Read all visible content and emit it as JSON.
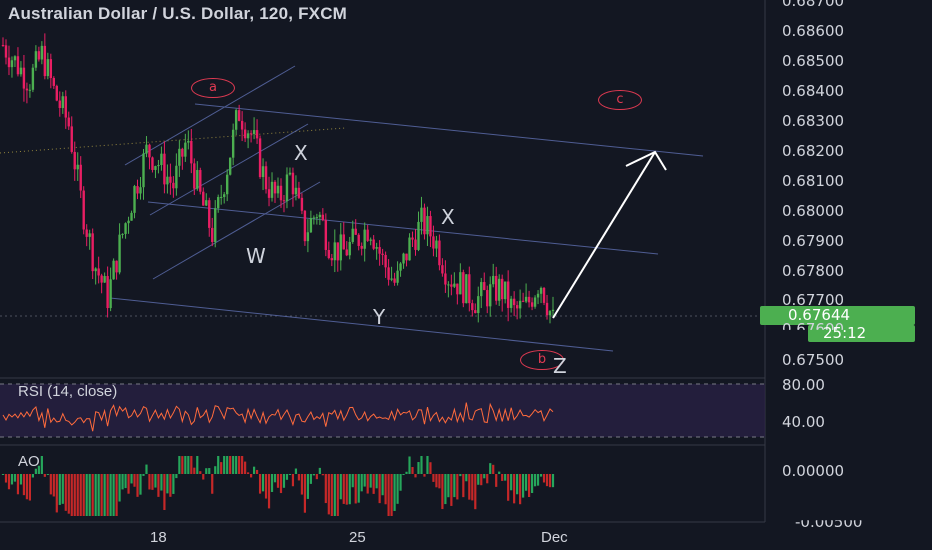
{
  "header": {
    "title": "Australian Dollar / U.S. Dollar, 120, FXCM"
  },
  "price_axis": {
    "ticks": [
      "0.68700",
      "0.68600",
      "0.68500",
      "0.68400",
      "0.68300",
      "0.68200",
      "0.68100",
      "0.68000",
      "0.67900",
      "0.67800",
      "0.67700",
      "0.67600",
      "0.67500"
    ],
    "last_price": "0.67644",
    "countdown": "25:12"
  },
  "rsi_pane": {
    "label": "RSI (14, close)",
    "ticks": [
      "80.00",
      "40.00"
    ]
  },
  "ao_pane": {
    "label": "AO",
    "ticks": [
      "0.00000",
      "-0.00500"
    ]
  },
  "time_axis": {
    "ticks": [
      "18",
      "25",
      "Dec"
    ]
  },
  "annotations": {
    "waves": [
      "a",
      "X",
      "W",
      "X",
      "Y",
      "b",
      "Z",
      "c"
    ]
  },
  "colors": {
    "background": "#131722",
    "bull": "#26a69a",
    "bull_candle": "#4caf50",
    "bear": "#e91e63",
    "rsi_line": "#ff6b3d",
    "rsi_band": "#2a2145",
    "ao_up": "#26a65b",
    "ao_down": "#c62828",
    "price_badge": "#4caf50",
    "wave_circle": "#e03a52"
  },
  "chart_data": {
    "type": "candlestick",
    "symbol": "AUD/USD",
    "timeframe": "120",
    "exchange": "FXCM",
    "ylim": [
      0.6745,
      0.6872
    ],
    "x_ticks": [
      "18",
      "25",
      "Dec"
    ],
    "last_price": 0.67644,
    "close_path": [
      0.6855,
      0.6849,
      0.6843,
      0.6852,
      0.6838,
      0.6829,
      0.6802,
      0.6782,
      0.6771,
      0.679,
      0.6806,
      0.682,
      0.6815,
      0.6808,
      0.6823,
      0.6805,
      0.6792,
      0.6812,
      0.6833,
      0.6825,
      0.681,
      0.6803,
      0.6812,
      0.6792,
      0.68,
      0.6788,
      0.6786,
      0.679,
      0.6795,
      0.6783,
      0.6775,
      0.6788,
      0.6796,
      0.679,
      0.6778,
      0.6775,
      0.677,
      0.6772,
      0.6774,
      0.6766,
      0.6768,
      0.6777,
      0.6763
    ],
    "rsi": {
      "bands": [
        30,
        80
      ],
      "ticks": [
        80,
        40
      ],
      "level": "mid"
    },
    "ao": {
      "ticks": [
        0.0,
        -0.005
      ]
    }
  }
}
